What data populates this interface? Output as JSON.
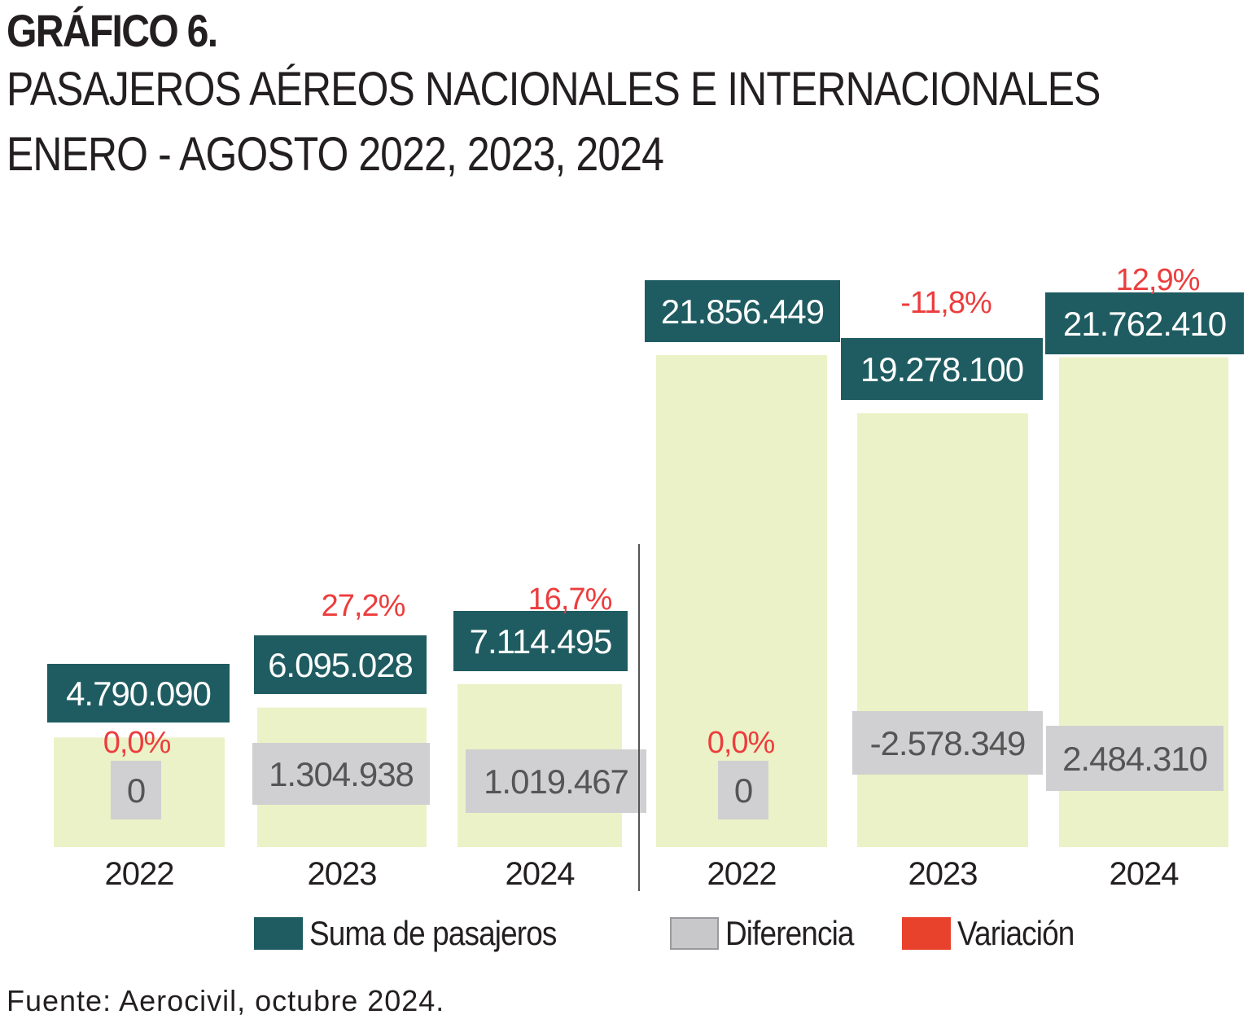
{
  "header": {
    "label": "GRÁFICO 6.",
    "title_line1": "PASAJEROS AÉREOS NACIONALES E INTERNACIONALES",
    "title_line2": "ENERO - AGOSTO 2022, 2023, 2024"
  },
  "chart_data": {
    "type": "bar",
    "groups": [
      {
        "categories": [
          "2022",
          "2023",
          "2024"
        ],
        "values": [
          4790090,
          6095028,
          7114495
        ],
        "value_labels": [
          "4.790.090",
          "6.095.028",
          "7.114.495"
        ],
        "differences": [
          "0",
          "1.304.938",
          "1.019.467"
        ],
        "variations": [
          "0,0%",
          "27,2%",
          "16,7%"
        ]
      },
      {
        "categories": [
          "2022",
          "2023",
          "2024"
        ],
        "values": [
          21856449,
          19278100,
          21762410
        ],
        "value_labels": [
          "21.856.449",
          "19.278.100",
          "21.762.410"
        ],
        "differences": [
          "0",
          "-2.578.349",
          "2.484.310"
        ],
        "variations": [
          "0,0%",
          "-11,8%",
          "12,9%"
        ]
      }
    ],
    "legend": [
      {
        "label": "Suma de pasajeros",
        "color": "#1f5c61"
      },
      {
        "label": "Diferencia",
        "color": "#c8c8ca"
      },
      {
        "label": "Variación",
        "color": "#e8412c"
      }
    ],
    "legend_placement": "bottom",
    "bar_color": "#ebf2c7",
    "value_box_color": "#1f5c61",
    "difference_box_color": "#d0d0d2",
    "variation_color": "#ec3d3d",
    "grid": false
  },
  "footer": {
    "source": "Fuente: Aerocivil, octubre 2024."
  }
}
